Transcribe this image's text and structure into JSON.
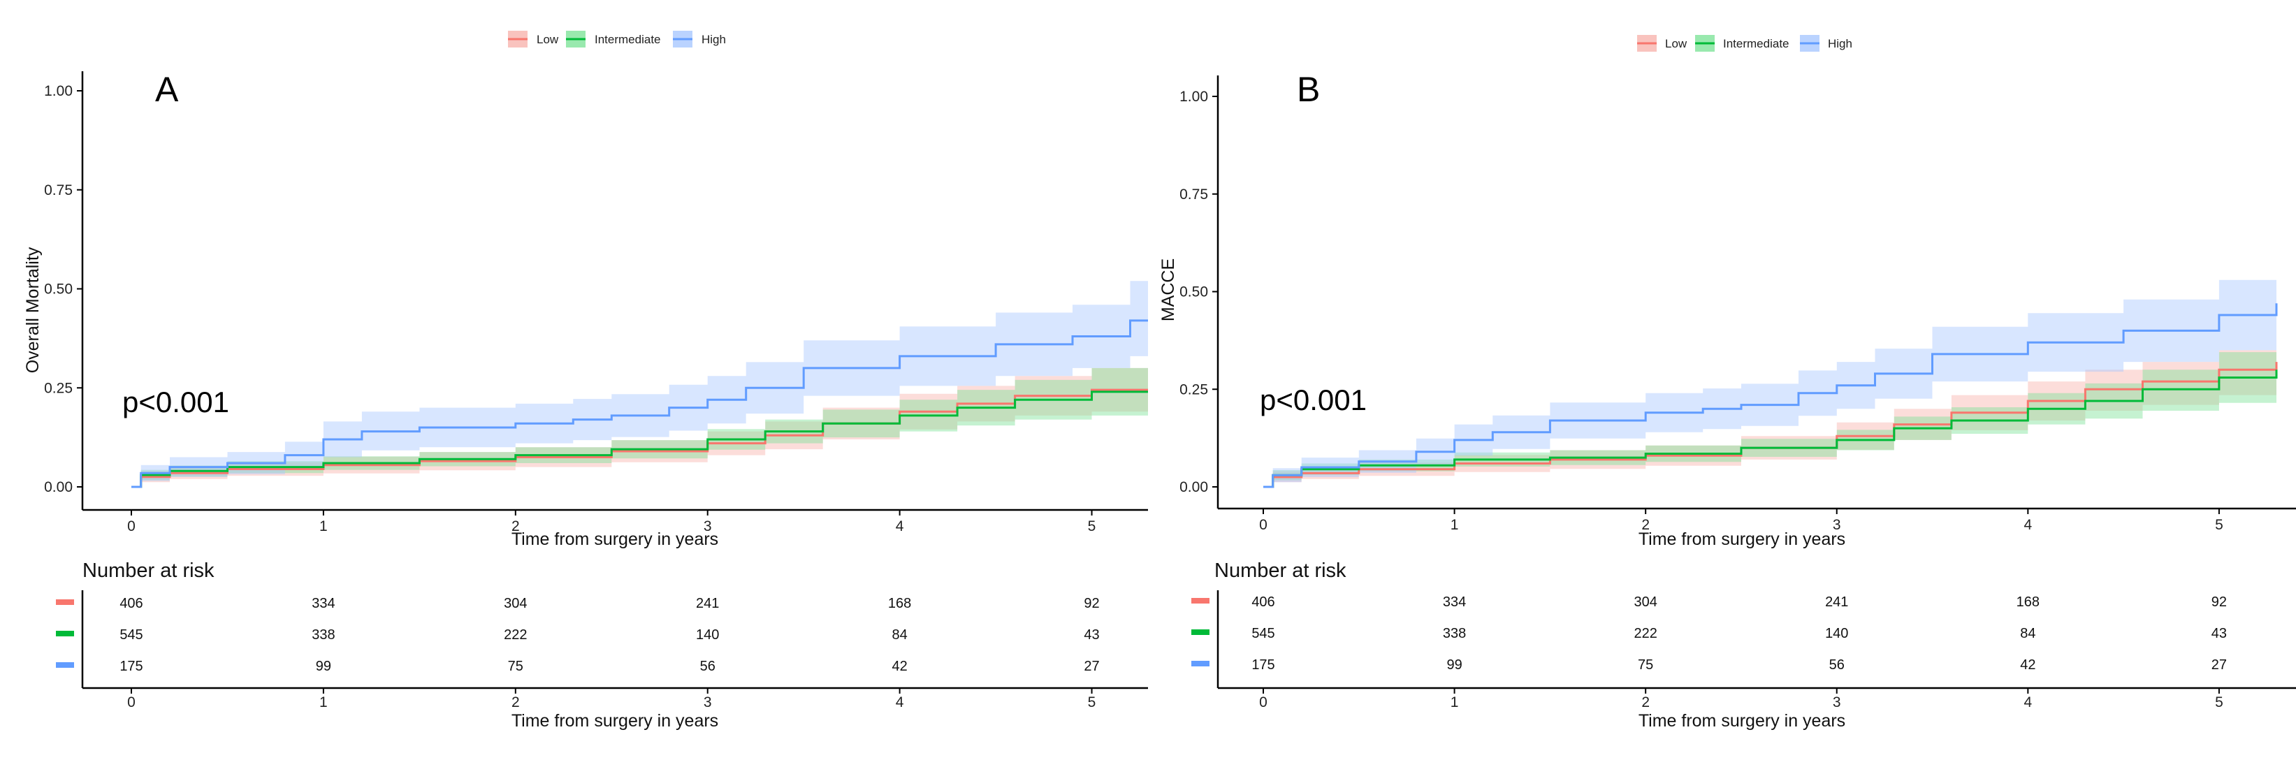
{
  "chart_data": [
    {
      "type": "line",
      "panel": "A",
      "ylabel": "Overall Mortality",
      "xlabel": "Time from surgery in years",
      "ylim": [
        0,
        1
      ],
      "xlim": [
        0,
        5.3
      ],
      "yticks": [
        "0.00",
        "0.25",
        "0.50",
        "0.75",
        "1.00"
      ],
      "xticks": [
        "0",
        "1",
        "2",
        "3",
        "4",
        "5"
      ],
      "pvalue": "p<0.001",
      "legend": [
        {
          "name": "Low",
          "color": "#F8766D",
          "band": "#F8B4AE"
        },
        {
          "name": "Intermediate",
          "color": "#00BA38",
          "band": "#7FE39A"
        },
        {
          "name": "High",
          "color": "#619CFF",
          "band": "#A9C8FF"
        }
      ],
      "series": [
        {
          "name": "Low",
          "x": [
            0,
            0.05,
            0.2,
            0.5,
            1.0,
            1.5,
            2.0,
            2.5,
            3.0,
            3.3,
            3.6,
            4.0,
            4.3,
            4.6,
            5.0,
            5.3
          ],
          "y": [
            0,
            0.025,
            0.035,
            0.045,
            0.055,
            0.065,
            0.075,
            0.09,
            0.11,
            0.13,
            0.16,
            0.19,
            0.21,
            0.23,
            0.245,
            0.26
          ],
          "lower": [
            0,
            0.012,
            0.02,
            0.028,
            0.034,
            0.042,
            0.05,
            0.062,
            0.08,
            0.095,
            0.12,
            0.145,
            0.165,
            0.18,
            0.19,
            0.2
          ],
          "upper": [
            0,
            0.04,
            0.05,
            0.062,
            0.076,
            0.088,
            0.1,
            0.118,
            0.14,
            0.165,
            0.2,
            0.235,
            0.255,
            0.28,
            0.3,
            0.32
          ]
        },
        {
          "name": "Intermediate",
          "x": [
            0,
            0.05,
            0.2,
            0.5,
            1.0,
            1.5,
            2.0,
            2.5,
            3.0,
            3.3,
            3.6,
            4.0,
            4.3,
            4.6,
            5.0,
            5.3
          ],
          "y": [
            0,
            0.03,
            0.04,
            0.05,
            0.06,
            0.07,
            0.08,
            0.095,
            0.12,
            0.14,
            0.16,
            0.18,
            0.2,
            0.22,
            0.24,
            0.25
          ],
          "lower": [
            0,
            0.017,
            0.026,
            0.035,
            0.043,
            0.052,
            0.06,
            0.072,
            0.094,
            0.11,
            0.125,
            0.14,
            0.155,
            0.17,
            0.18,
            0.19
          ],
          "upper": [
            0,
            0.043,
            0.054,
            0.065,
            0.077,
            0.088,
            0.1,
            0.118,
            0.146,
            0.17,
            0.195,
            0.22,
            0.245,
            0.27,
            0.3,
            0.32
          ]
        },
        {
          "name": "High",
          "x": [
            0,
            0.05,
            0.2,
            0.5,
            0.8,
            1.0,
            1.2,
            1.5,
            2.0,
            2.3,
            2.5,
            2.8,
            3.0,
            3.2,
            3.5,
            4.0,
            4.5,
            4.9,
            5.2,
            5.3
          ],
          "y": [
            0,
            0.035,
            0.05,
            0.06,
            0.08,
            0.12,
            0.14,
            0.15,
            0.16,
            0.17,
            0.18,
            0.2,
            0.22,
            0.25,
            0.3,
            0.33,
            0.36,
            0.38,
            0.42,
            0.44
          ],
          "lower": [
            0,
            0.015,
            0.025,
            0.032,
            0.046,
            0.075,
            0.092,
            0.1,
            0.11,
            0.118,
            0.126,
            0.142,
            0.16,
            0.185,
            0.23,
            0.255,
            0.28,
            0.3,
            0.33,
            0.34
          ],
          "upper": [
            0,
            0.055,
            0.075,
            0.088,
            0.114,
            0.165,
            0.19,
            0.2,
            0.21,
            0.222,
            0.234,
            0.258,
            0.28,
            0.315,
            0.37,
            0.405,
            0.44,
            0.46,
            0.52,
            0.55
          ]
        }
      ],
      "risk_table": {
        "title": "Number at risk",
        "xlabel": "Time from surgery in years",
        "times": [
          "0",
          "1",
          "2",
          "3",
          "4",
          "5"
        ],
        "rows": [
          {
            "group": "Low",
            "color": "#F8766D",
            "values": [
              "406",
              "334",
              "304",
              "241",
              "168",
              "92"
            ]
          },
          {
            "group": "Intermediate",
            "color": "#00BA38",
            "values": [
              "545",
              "338",
              "222",
              "140",
              "84",
              "43"
            ]
          },
          {
            "group": "High",
            "color": "#619CFF",
            "values": [
              "175",
              "99",
              "75",
              "56",
              "42",
              "27"
            ]
          }
        ]
      }
    },
    {
      "type": "line",
      "panel": "B",
      "ylabel": "MACCE",
      "xlabel": "Time from surgery in years",
      "ylim": [
        0,
        1
      ],
      "xlim": [
        0,
        5.3
      ],
      "yticks": [
        "0.00",
        "0.25",
        "0.50",
        "0.75",
        "1.00"
      ],
      "xticks": [
        "0",
        "1",
        "2",
        "3",
        "4",
        "5"
      ],
      "pvalue": "p<0.001",
      "legend": [
        {
          "name": "Low",
          "color": "#F8766D",
          "band": "#F8B4AE"
        },
        {
          "name": "Intermediate",
          "color": "#00BA38",
          "band": "#7FE39A"
        },
        {
          "name": "High",
          "color": "#619CFF",
          "band": "#A9C8FF"
        }
      ],
      "series": [
        {
          "name": "Low",
          "x": [
            0,
            0.05,
            0.2,
            0.5,
            1.0,
            1.5,
            2.0,
            2.5,
            3.0,
            3.3,
            3.6,
            4.0,
            4.3,
            4.6,
            5.0,
            5.3
          ],
          "y": [
            0,
            0.025,
            0.035,
            0.045,
            0.06,
            0.07,
            0.08,
            0.1,
            0.13,
            0.16,
            0.19,
            0.22,
            0.25,
            0.27,
            0.3,
            0.32
          ],
          "lower": [
            0,
            0.012,
            0.02,
            0.028,
            0.038,
            0.046,
            0.054,
            0.07,
            0.095,
            0.12,
            0.145,
            0.17,
            0.195,
            0.21,
            0.235,
            0.25
          ],
          "upper": [
            0,
            0.04,
            0.05,
            0.062,
            0.082,
            0.094,
            0.106,
            0.13,
            0.165,
            0.2,
            0.235,
            0.27,
            0.3,
            0.32,
            0.35,
            0.37
          ]
        },
        {
          "name": "Intermediate",
          "x": [
            0,
            0.05,
            0.2,
            0.5,
            1.0,
            1.5,
            2.0,
            2.5,
            3.0,
            3.3,
            3.6,
            4.0,
            4.3,
            4.6,
            5.0,
            5.3
          ],
          "y": [
            0,
            0.03,
            0.045,
            0.055,
            0.07,
            0.075,
            0.085,
            0.1,
            0.12,
            0.15,
            0.17,
            0.2,
            0.22,
            0.25,
            0.28,
            0.3
          ],
          "lower": [
            0,
            0.017,
            0.03,
            0.04,
            0.052,
            0.056,
            0.064,
            0.077,
            0.094,
            0.12,
            0.136,
            0.16,
            0.175,
            0.195,
            0.215,
            0.23
          ],
          "upper": [
            0,
            0.043,
            0.06,
            0.07,
            0.088,
            0.094,
            0.106,
            0.123,
            0.146,
            0.18,
            0.204,
            0.24,
            0.265,
            0.3,
            0.345,
            0.37
          ]
        },
        {
          "name": "High",
          "x": [
            0,
            0.05,
            0.2,
            0.5,
            0.8,
            1.0,
            1.2,
            1.5,
            2.0,
            2.3,
            2.5,
            2.8,
            3.0,
            3.2,
            3.5,
            4.0,
            4.5,
            5.0,
            5.3
          ],
          "y": [
            0,
            0.03,
            0.05,
            0.065,
            0.09,
            0.12,
            0.14,
            0.17,
            0.19,
            0.2,
            0.21,
            0.24,
            0.26,
            0.29,
            0.34,
            0.37,
            0.4,
            0.44,
            0.47
          ],
          "lower": [
            0,
            0.012,
            0.025,
            0.036,
            0.056,
            0.08,
            0.097,
            0.124,
            0.14,
            0.148,
            0.156,
            0.182,
            0.2,
            0.226,
            0.27,
            0.295,
            0.32,
            0.35,
            0.37
          ],
          "upper": [
            0,
            0.048,
            0.075,
            0.094,
            0.124,
            0.16,
            0.183,
            0.216,
            0.24,
            0.252,
            0.264,
            0.298,
            0.32,
            0.354,
            0.41,
            0.445,
            0.48,
            0.53,
            0.58
          ]
        }
      ],
      "risk_table": {
        "title": "Number at risk",
        "xlabel": "Time from surgery in years",
        "times": [
          "0",
          "1",
          "2",
          "3",
          "4",
          "5"
        ],
        "rows": [
          {
            "group": "Low",
            "color": "#F8766D",
            "values": [
              "406",
              "334",
              "304",
              "241",
              "168",
              "92"
            ]
          },
          {
            "group": "Intermediate",
            "color": "#00BA38",
            "values": [
              "545",
              "338",
              "222",
              "140",
              "84",
              "43"
            ]
          },
          {
            "group": "High",
            "color": "#619CFF",
            "values": [
              "175",
              "99",
              "75",
              "56",
              "42",
              "27"
            ]
          }
        ]
      }
    }
  ]
}
